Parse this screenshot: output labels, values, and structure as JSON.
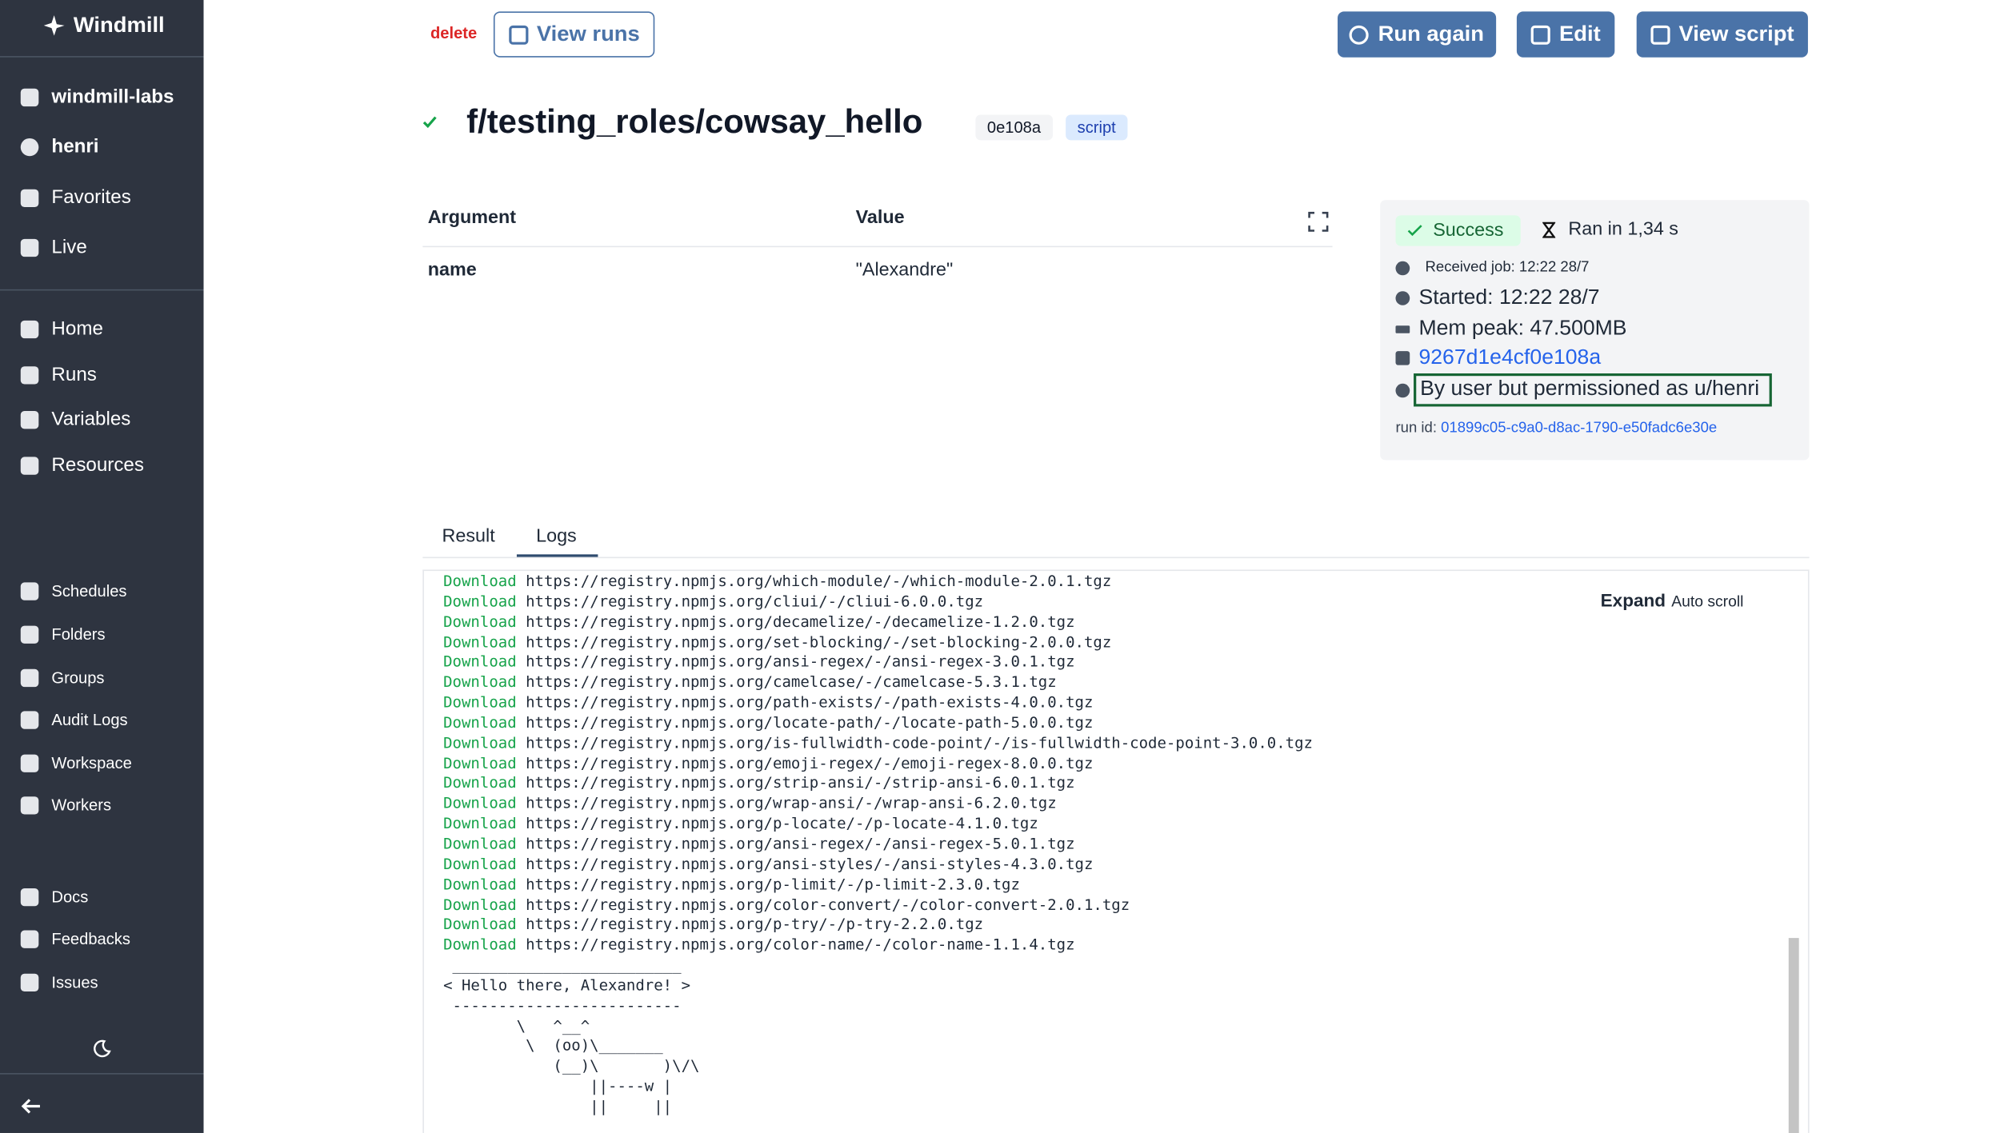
{
  "sidebar": {
    "brand": "Windmill",
    "workspace": "windmill-labs",
    "user": "henri",
    "top_items": [
      "Favorites",
      "Live"
    ],
    "main_items": [
      "Home",
      "Runs",
      "Variables",
      "Resources"
    ],
    "admin_items": [
      "Schedules",
      "Folders",
      "Groups",
      "Audit Logs",
      "Workspace",
      "Workers"
    ],
    "help_items": [
      "Docs",
      "Feedbacks",
      "Issues"
    ]
  },
  "toolbar": {
    "delete": "delete",
    "view_runs": "View runs",
    "run_again": "Run again",
    "edit": "Edit",
    "view_script": "View script"
  },
  "header": {
    "path": "f/testing_roles/cowsay_hello",
    "hash": "0e108a",
    "kind": "script"
  },
  "arguments": {
    "headers": [
      "Argument",
      "Value"
    ],
    "rows": [
      [
        "name",
        "\"Alexandre\""
      ]
    ]
  },
  "status": {
    "state": "Success",
    "duration": "Ran in 1,34 s",
    "received": "Received job: 12:22 28/7",
    "started": "Started: 12:22 28/7",
    "mem_peak": "Mem peak: 47.500MB",
    "script_hash": "9267d1e4cf0e108a",
    "permission": "By user but permissioned as u/henri",
    "run_id_label": "run id:",
    "run_id": "01899c05-c9a0-d8ac-1790-e50fadc6e30e"
  },
  "tabs": [
    "Result",
    "Logs"
  ],
  "logs": {
    "expand": "Expand",
    "auto_scroll": "Auto scroll",
    "lines": [
      {
        "kind": "Download",
        "url": "https://registry.npmjs.org/which-module/-/which-module-2.0.1.tgz"
      },
      {
        "kind": "Download",
        "url": "https://registry.npmjs.org/cliui/-/cliui-6.0.0.tgz"
      },
      {
        "kind": "Download",
        "url": "https://registry.npmjs.org/decamelize/-/decamelize-1.2.0.tgz"
      },
      {
        "kind": "Download",
        "url": "https://registry.npmjs.org/set-blocking/-/set-blocking-2.0.0.tgz"
      },
      {
        "kind": "Download",
        "url": "https://registry.npmjs.org/ansi-regex/-/ansi-regex-3.0.1.tgz"
      },
      {
        "kind": "Download",
        "url": "https://registry.npmjs.org/camelcase/-/camelcase-5.3.1.tgz"
      },
      {
        "kind": "Download",
        "url": "https://registry.npmjs.org/path-exists/-/path-exists-4.0.0.tgz"
      },
      {
        "kind": "Download",
        "url": "https://registry.npmjs.org/locate-path/-/locate-path-5.0.0.tgz"
      },
      {
        "kind": "Download",
        "url": "https://registry.npmjs.org/is-fullwidth-code-point/-/is-fullwidth-code-point-3.0.0.tgz"
      },
      {
        "kind": "Download",
        "url": "https://registry.npmjs.org/emoji-regex/-/emoji-regex-8.0.0.tgz"
      },
      {
        "kind": "Download",
        "url": "https://registry.npmjs.org/strip-ansi/-/strip-ansi-6.0.1.tgz"
      },
      {
        "kind": "Download",
        "url": "https://registry.npmjs.org/wrap-ansi/-/wrap-ansi-6.2.0.tgz"
      },
      {
        "kind": "Download",
        "url": "https://registry.npmjs.org/p-locate/-/p-locate-4.1.0.tgz"
      },
      {
        "kind": "Download",
        "url": "https://registry.npmjs.org/ansi-regex/-/ansi-regex-5.0.1.tgz"
      },
      {
        "kind": "Download",
        "url": "https://registry.npmjs.org/ansi-styles/-/ansi-styles-4.3.0.tgz"
      },
      {
        "kind": "Download",
        "url": "https://registry.npmjs.org/p-limit/-/p-limit-2.3.0.tgz"
      },
      {
        "kind": "Download",
        "url": "https://registry.npmjs.org/color-convert/-/color-convert-2.0.1.tgz"
      },
      {
        "kind": "Download",
        "url": "https://registry.npmjs.org/p-try/-/p-try-2.2.0.tgz"
      },
      {
        "kind": "Download",
        "url": "https://registry.npmjs.org/color-name/-/color-name-1.1.4.tgz"
      }
    ],
    "output": [
      " _________________________",
      "< Hello there, Alexandre! >",
      " -------------------------",
      "        \\   ^__^",
      "         \\  (oo)\\_______",
      "            (__)\\       )\\/\\",
      "                ||----w |",
      "                ||     ||"
    ]
  }
}
